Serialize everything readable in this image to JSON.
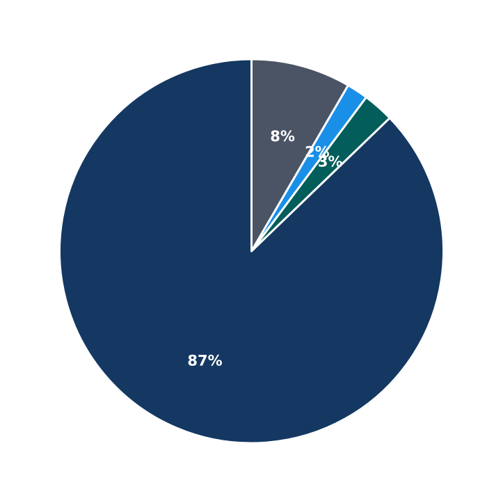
{
  "chart_data": {
    "type": "pie",
    "start": "top",
    "direction": "clockwise",
    "slices": [
      {
        "label": "8%",
        "value": 8.4,
        "color": "#4a5464"
      },
      {
        "label": "2%",
        "value": 1.8,
        "color": "#1a8fe8"
      },
      {
        "label": "3%",
        "value": 2.6,
        "color": "#035d5a"
      },
      {
        "label": "87%",
        "value": 87.2,
        "color": "#143862"
      }
    ]
  }
}
